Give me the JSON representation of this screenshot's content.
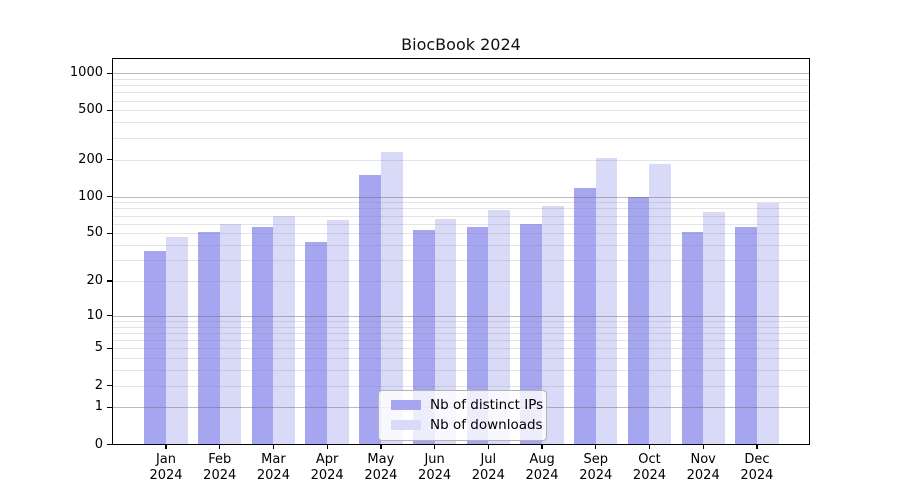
{
  "title": "BiocBook 2024",
  "chart_data": {
    "type": "bar",
    "title": "BiocBook 2024",
    "categories": [
      "Jan 2024",
      "Feb 2024",
      "Mar 2024",
      "Apr 2024",
      "May 2024",
      "Jun 2024",
      "Jul 2024",
      "Aug 2024",
      "Sep 2024",
      "Oct 2024",
      "Nov 2024",
      "Dec 2024"
    ],
    "series": [
      {
        "name": "Nb of distinct IPs",
        "color": "#a5a5f0",
        "values": [
          36,
          51,
          56,
          42,
          150,
          53,
          56,
          60,
          118,
          100,
          51,
          56
        ]
      },
      {
        "name": "Nb of downloads",
        "color": "#d9d9f8",
        "values": [
          47,
          60,
          70,
          64,
          230,
          66,
          77,
          83,
          205,
          183,
          75,
          89
        ]
      }
    ],
    "xlabel": "",
    "ylabel": "",
    "yscale": "log1p",
    "yticks": [
      0,
      1,
      2,
      5,
      10,
      20,
      50,
      100,
      200,
      500,
      1000
    ],
    "ylim": [
      0,
      1300
    ],
    "grid": "horizontal major+minor",
    "grid_major_color": "#6969694d",
    "grid_minor_color": "#82828238",
    "legend_position": "inside lower-center",
    "legend_border_color": "#b3b3b3"
  },
  "axes": {
    "y_tick_labels": [
      "0",
      "1",
      "2",
      "5",
      "10",
      "20",
      "50",
      "100",
      "200",
      "500",
      "1000"
    ],
    "x_tick_labels": [
      [
        "Jan",
        "2024"
      ],
      [
        "Feb",
        "2024"
      ],
      [
        "Mar",
        "2024"
      ],
      [
        "Apr",
        "2024"
      ],
      [
        "May",
        "2024"
      ],
      [
        "Jun",
        "2024"
      ],
      [
        "Jul",
        "2024"
      ],
      [
        "Aug",
        "2024"
      ],
      [
        "Sep",
        "2024"
      ],
      [
        "Oct",
        "2024"
      ],
      [
        "Nov",
        "2024"
      ],
      [
        "Dec",
        "2024"
      ]
    ]
  },
  "legend": {
    "items": [
      {
        "label": "Nb of distinct IPs",
        "color": "#a5a5f0"
      },
      {
        "label": "Nb of downloads",
        "color": "#d9d9f8"
      }
    ]
  }
}
